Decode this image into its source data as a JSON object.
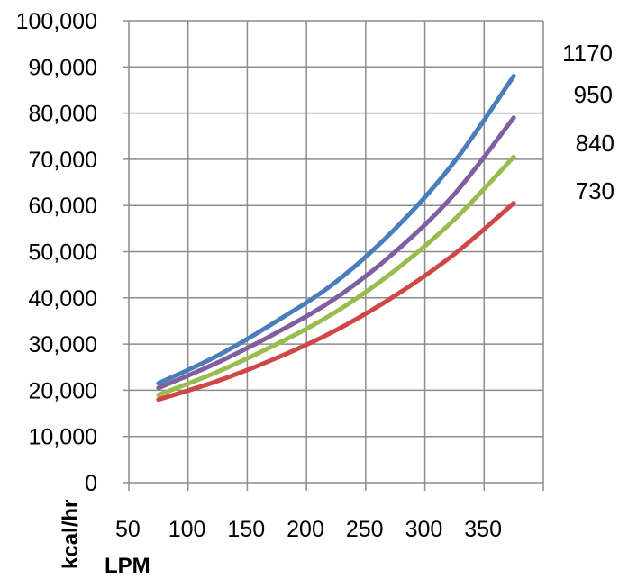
{
  "chart_data": {
    "type": "line",
    "title": "",
    "xlabel": "LPM",
    "ylabel": "kcal/hr",
    "categories": [
      "50",
      "100",
      "150",
      "200",
      "250",
      "300",
      "350"
    ],
    "x_tick_labels": [
      "50",
      "100",
      "150",
      "200",
      "250",
      "300",
      "350"
    ],
    "y_tick_labels": [
      "0",
      "10,000",
      "20,000",
      "30,000",
      "40,000",
      "50,000",
      "60,000",
      "70,000",
      "80,000",
      "90,000",
      "100,000"
    ],
    "ylim": [
      0,
      100000
    ],
    "grid": true,
    "legend": "right",
    "series": [
      {
        "name": "1170",
        "color": "#4a7ebb",
        "values": [
          21500,
          27500,
          35000,
          43500,
          55000,
          69500,
          88000
        ]
      },
      {
        "name": "950",
        "color": "#7f5fa0",
        "values": [
          20500,
          26000,
          32500,
          40000,
          50000,
          62500,
          79000
        ]
      },
      {
        "name": "840",
        "color": "#98bd4d",
        "values": [
          19000,
          24000,
          30000,
          37000,
          46000,
          57000,
          70500
        ]
      },
      {
        "name": "730",
        "color": "#d04747",
        "values": [
          18000,
          22000,
          27000,
          33000,
          40500,
          49500,
          60500
        ]
      }
    ]
  }
}
